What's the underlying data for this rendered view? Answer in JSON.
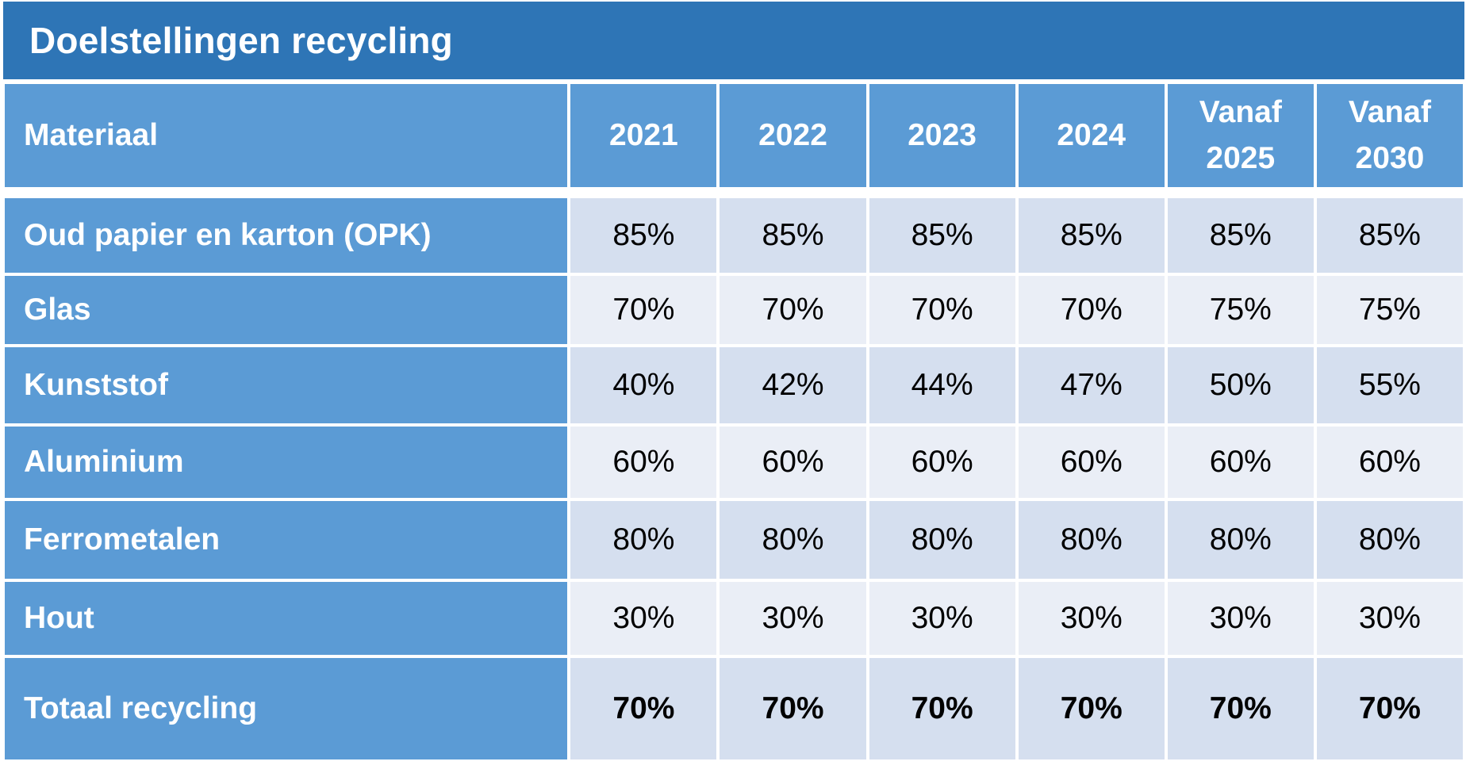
{
  "title": "Doelstellingen recycling",
  "columns": [
    "Materiaal",
    "2021",
    "2022",
    "2023",
    "2024",
    "Vanaf 2025",
    "Vanaf 2030"
  ],
  "column_lines": [
    [
      "Materiaal"
    ],
    [
      "2021"
    ],
    [
      "2022"
    ],
    [
      "2023"
    ],
    [
      "2024"
    ],
    [
      "Vanaf",
      "2025"
    ],
    [
      "Vanaf",
      "2030"
    ]
  ],
  "rows": [
    {
      "label": "Oud papier en karton (OPK)",
      "values": [
        "85%",
        "85%",
        "85%",
        "85%",
        "85%",
        "85%"
      ]
    },
    {
      "label": "Glas",
      "values": [
        "70%",
        "70%",
        "70%",
        "70%",
        "75%",
        "75%"
      ]
    },
    {
      "label": "Kunststof",
      "values": [
        "40%",
        "42%",
        "44%",
        "47%",
        "50%",
        "55%"
      ]
    },
    {
      "label": "Aluminium",
      "values": [
        "60%",
        "60%",
        "60%",
        "60%",
        "60%",
        "60%"
      ]
    },
    {
      "label": "Ferrometalen",
      "values": [
        "80%",
        "80%",
        "80%",
        "80%",
        "80%",
        "80%"
      ]
    },
    {
      "label": "Hout",
      "values": [
        "30%",
        "30%",
        "30%",
        "30%",
        "30%",
        "30%"
      ]
    },
    {
      "label": "Totaal recycling",
      "values": [
        "70%",
        "70%",
        "70%",
        "70%",
        "70%",
        "70%"
      ]
    }
  ],
  "colors": {
    "title_bg": "#2e75b6",
    "header_bg": "#5b9bd5",
    "cell_dark": "#d5dfef",
    "cell_light": "#eaeef6",
    "text_on_blue": "#ffffff"
  }
}
